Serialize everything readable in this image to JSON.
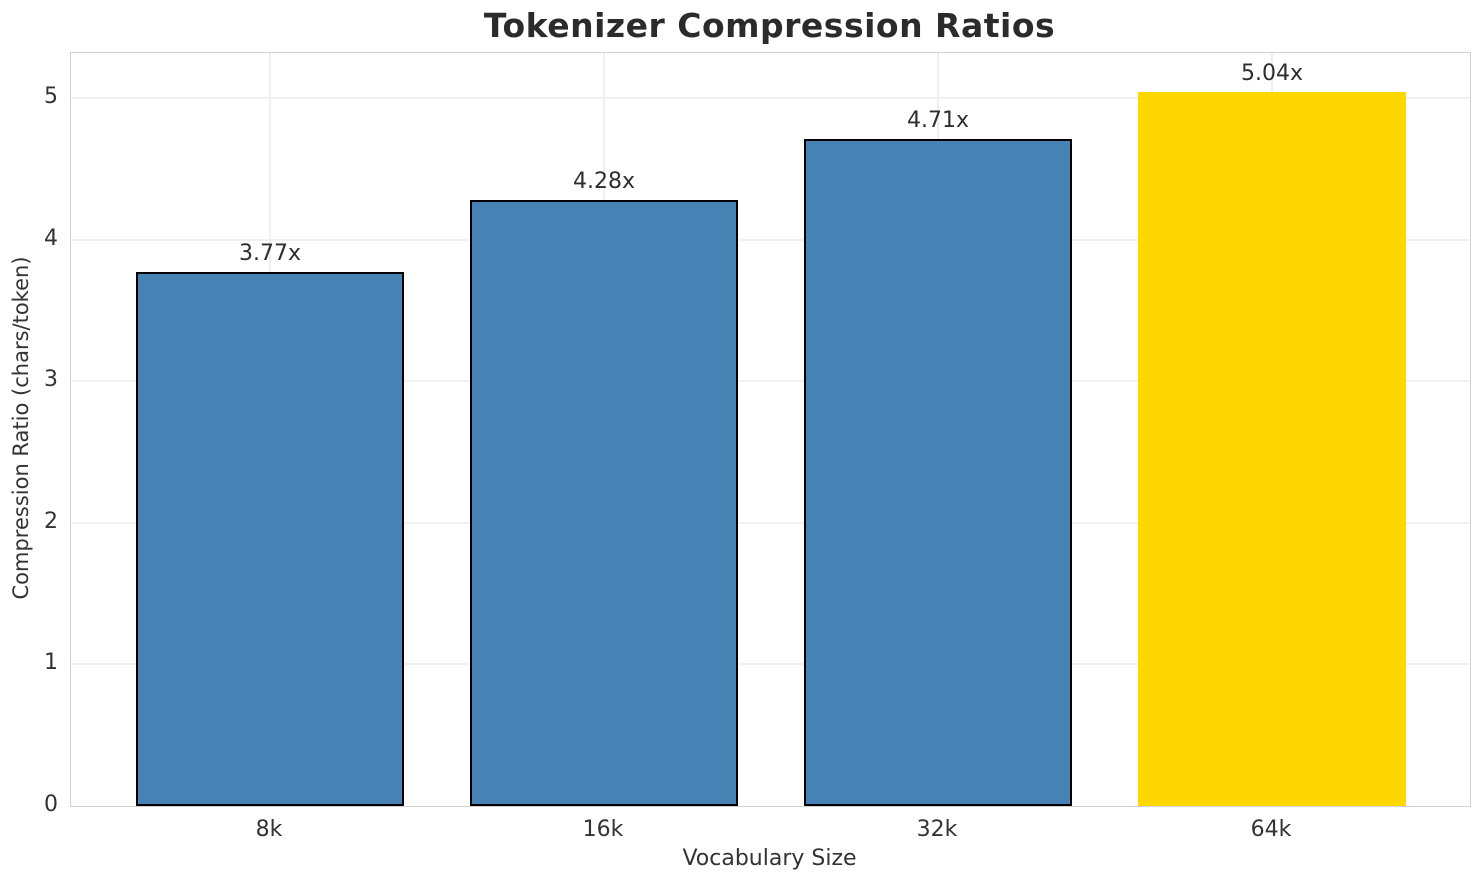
{
  "chart_data": {
    "type": "bar",
    "title": "Tokenizer Compression Ratios",
    "xlabel": "Vocabulary Size",
    "ylabel": "Compression Ratio (chars/token)",
    "categories": [
      "8k",
      "16k",
      "32k",
      "64k"
    ],
    "values": [
      3.77,
      4.28,
      4.71,
      5.04
    ],
    "bar_labels": [
      "3.77x",
      "4.28x",
      "4.71x",
      "5.04x"
    ],
    "bar_colors": [
      "#4682b4",
      "#4682b4",
      "#4682b4",
      "#ffd700"
    ],
    "bar_edge_colors": [
      "#000000",
      "#000000",
      "#000000",
      "none"
    ],
    "yticks": [
      0,
      1,
      2,
      3,
      4,
      5
    ],
    "ylim": [
      0,
      5.318
    ],
    "grid": true,
    "legend": "none",
    "colors": {
      "bar_default": "#4682b4",
      "bar_highlight": "#ffd700",
      "bar_edge": "#000000",
      "grid": "#f0f0f0",
      "spine": "#d2d2d2",
      "title_text": "#2b2b2b",
      "tick_text": "#333333"
    }
  }
}
